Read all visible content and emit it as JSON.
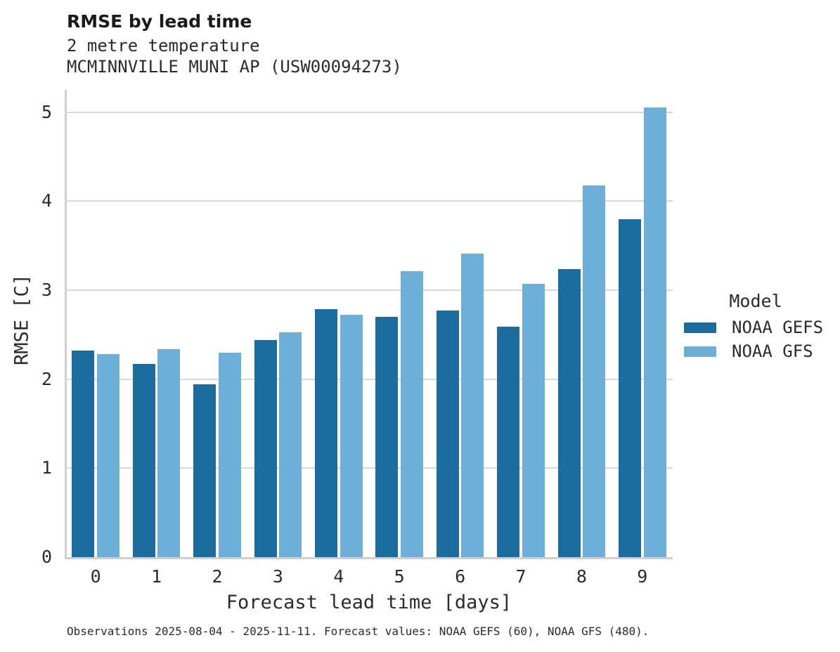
{
  "caption": "Observations 2025-08-04 - 2025-11-11. Forecast values: NOAA GEFS (60), NOAA GFS (480).",
  "colors": {
    "gefs_dark_blue": "#1A6D9E",
    "gfs_light_blue": "#6CB0D9",
    "gridline_gray": "#D9D9D9",
    "axis_gray": "#CFCFCF",
    "text": "#2B2B2B"
  },
  "chart_data": {
    "type": "bar",
    "title": "RMSE by lead time",
    "subtitle_lines": [
      "2 metre temperature",
      "MCMINNVILLE MUNI AP (USW00094273)"
    ],
    "categories": [
      "0",
      "1",
      "2",
      "3",
      "4",
      "5",
      "6",
      "7",
      "8",
      "9"
    ],
    "series": [
      {
        "name": "NOAA GEFS",
        "color": "#1A6D9E",
        "values": [
          2.32,
          2.17,
          1.94,
          2.44,
          2.79,
          2.7,
          2.77,
          2.59,
          3.24,
          3.8
        ]
      },
      {
        "name": "NOAA GFS",
        "color": "#6CB0D9",
        "values": [
          2.28,
          2.34,
          2.3,
          2.53,
          2.72,
          3.21,
          3.41,
          3.07,
          4.18,
          5.05
        ]
      }
    ],
    "xlabel": "Forecast lead time [days]",
    "ylabel": "RMSE [C]",
    "ylim": [
      0,
      5.25
    ],
    "yticks": [
      0,
      1,
      2,
      3,
      4,
      5
    ],
    "grid": true,
    "legend": {
      "title": "Model",
      "position": "right"
    }
  }
}
